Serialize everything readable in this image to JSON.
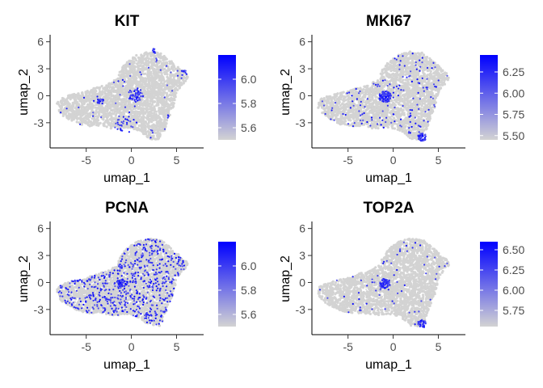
{
  "chart_data": [
    {
      "type": "scatter",
      "title": "KIT",
      "xlabel": "umap_1",
      "ylabel": "umap_2",
      "xlim": [
        -9,
        8
      ],
      "ylim": [
        -5.8,
        6.6
      ],
      "xticks": [
        -5,
        0,
        5
      ],
      "yticks": [
        -3,
        0,
        3,
        6
      ],
      "legend_ticks": [
        5.6,
        5.8,
        6.0
      ],
      "color_range": [
        5.5,
        6.2
      ],
      "color_low": "#d3d3d3",
      "color_high": "#0000ff",
      "expression_density": "sparse",
      "hotspots": [
        {
          "x": 0.5,
          "y": 0.1,
          "r": 0.9,
          "share": 0.32
        },
        {
          "x": -3.4,
          "y": -0.6,
          "r": 0.4,
          "share": 0.12
        },
        {
          "x": 2.6,
          "y": 5.0,
          "r": 0.3,
          "share": 0.05
        },
        {
          "x": 5.8,
          "y": 2.5,
          "r": 0.4,
          "share": 0.06
        },
        {
          "x": -0.8,
          "y": -3.2,
          "r": 1.1,
          "share": 0.15
        }
      ],
      "legend_position": "right"
    },
    {
      "type": "scatter",
      "title": "MKI67",
      "xlabel": "umap_1",
      "ylabel": "umap_2",
      "xlim": [
        -9,
        8
      ],
      "ylim": [
        -5.8,
        6.6
      ],
      "xticks": [
        -5,
        0,
        5
      ],
      "yticks": [
        -3,
        0,
        3,
        6
      ],
      "legend_ticks": [
        5.5,
        5.75,
        6.0,
        6.25
      ],
      "legend_tick_labels": [
        "5.50",
        "5.75",
        "6.00",
        "6.25"
      ],
      "color_range": [
        5.45,
        6.45
      ],
      "color_low": "#d3d3d3",
      "color_high": "#0000ff",
      "expression_density": "medium",
      "hotspots": [
        {
          "x": -0.9,
          "y": -0.1,
          "r": 0.7,
          "share": 0.35
        },
        {
          "x": 3.2,
          "y": -4.6,
          "r": 0.5,
          "share": 0.15
        }
      ],
      "legend_position": "right"
    },
    {
      "type": "scatter",
      "title": "PCNA",
      "xlabel": "umap_1",
      "ylabel": "umap_2",
      "xlim": [
        -9,
        8
      ],
      "ylim": [
        -5.8,
        6.6
      ],
      "xticks": [
        -5,
        0,
        5
      ],
      "yticks": [
        -3,
        0,
        3,
        6
      ],
      "legend_ticks": [
        5.6,
        5.8,
        6.0
      ],
      "color_range": [
        5.5,
        6.2
      ],
      "color_low": "#d3d3d3",
      "color_high": "#0000ff",
      "expression_density": "high",
      "hotspots": [
        {
          "x": -1.0,
          "y": -0.1,
          "r": 0.5,
          "share": 0.06
        }
      ],
      "legend_position": "right"
    },
    {
      "type": "scatter",
      "title": "TOP2A",
      "xlabel": "umap_1",
      "ylabel": "umap_2",
      "xlim": [
        -9,
        8
      ],
      "ylim": [
        -5.8,
        6.6
      ],
      "xticks": [
        -5,
        0,
        5
      ],
      "yticks": [
        -3,
        0,
        3,
        6
      ],
      "legend_ticks": [
        5.75,
        6.0,
        6.25,
        6.5
      ],
      "legend_tick_labels": [
        "5.75",
        "6.00",
        "6.25",
        "6.50"
      ],
      "color_range": [
        5.55,
        6.6
      ],
      "color_low": "#d3d3d3",
      "color_high": "#0000ff",
      "expression_density": "low",
      "hotspots": [
        {
          "x": -0.9,
          "y": -0.1,
          "r": 0.6,
          "share": 0.4
        },
        {
          "x": 3.2,
          "y": -4.6,
          "r": 0.5,
          "share": 0.2
        }
      ],
      "legend_position": "right"
    }
  ]
}
